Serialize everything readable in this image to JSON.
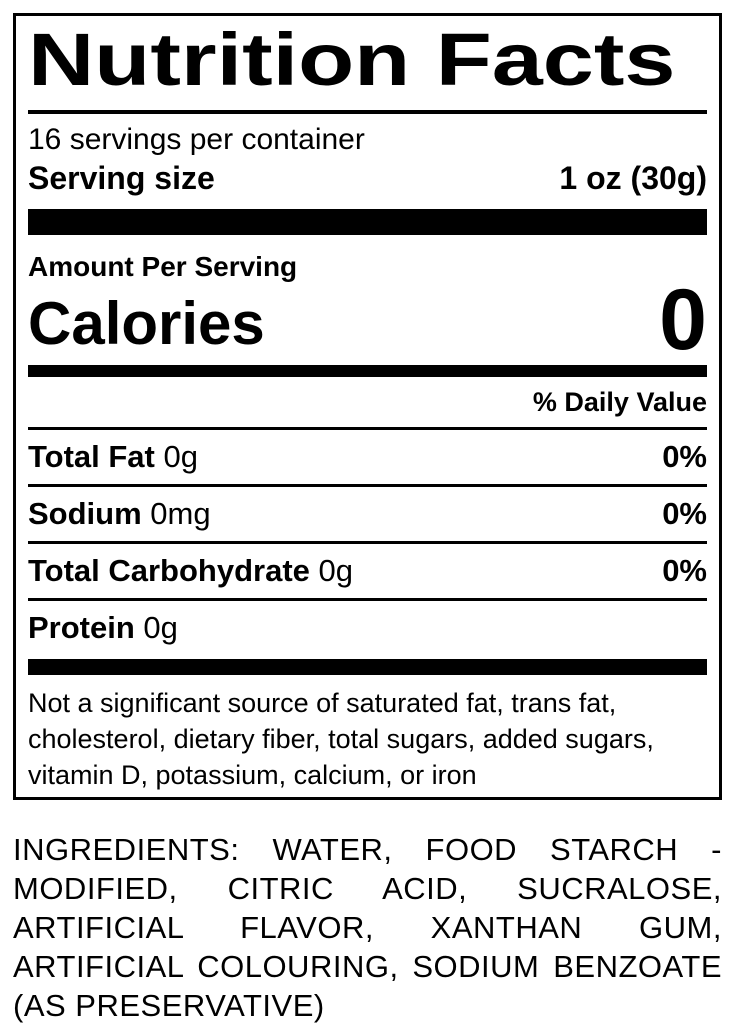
{
  "colors": {
    "text": "#000000",
    "background": "#ffffff",
    "rule": "#000000"
  },
  "nutrition_label": {
    "title": "Nutrition Facts",
    "servings_per_container": "16 servings per container",
    "serving_size": {
      "label": "Serving size",
      "value": "1 oz (30g)"
    },
    "amount_per_serving_label": "Amount Per Serving",
    "calories": {
      "label": "Calories",
      "value": "0"
    },
    "daily_value_header": "% Daily Value",
    "nutrients": [
      {
        "name": "Total Fat",
        "amount": "0g",
        "daily_value": "0%"
      },
      {
        "name": "Sodium",
        "amount": "0mg",
        "daily_value": "0%"
      },
      {
        "name": "Total Carbohydrate",
        "amount": "0g",
        "daily_value": "0%"
      },
      {
        "name": "Protein",
        "amount": "0g",
        "daily_value": ""
      }
    ],
    "footnote": "Not a significant source of saturated fat, trans fat, cholesterol, dietary fiber, total sugars, added sugars, vitamin D, potassium, calcium, or iron"
  },
  "ingredients_text": "INGREDIENTS: WATER, FOOD STARCH - MODIFIED, CITRIC ACID, SUCRALOSE, ARTIFICIAL FLAVOR, XANTHAN GUM, ARTIFICIAL COLOURING, SODIUM BENZOATE (AS PRESERVATIVE)"
}
